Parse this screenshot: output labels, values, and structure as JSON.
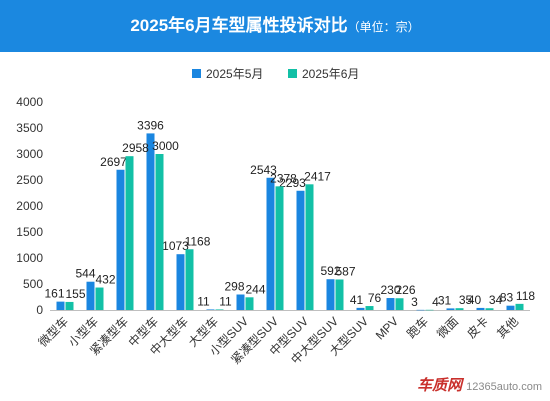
{
  "header": {
    "title": "2025年6月车型属性投诉对比",
    "subtitle": "（单位：宗）",
    "background": "#1b88e0"
  },
  "watermark": {
    "brand": "车质网",
    "url": "12365auto.com"
  },
  "chart_data": {
    "type": "bar",
    "categories": [
      "微型车",
      "小型车",
      "紧凑型车",
      "中型车",
      "中大型车",
      "大型车",
      "小型SUV",
      "紧凑型SUV",
      "中型SUV",
      "中大型SUV",
      "大型SUV",
      "MPV",
      "跑车",
      "微面",
      "皮卡",
      "其他"
    ],
    "series": [
      {
        "name": "2025年5月",
        "color": "#1a86e0",
        "values": [
          161,
          544,
          2697,
          3396,
          1073,
          11,
          298,
          2543,
          2293,
          592,
          41,
          230,
          3,
          31,
          40,
          83
        ]
      },
      {
        "name": "2025年6月",
        "color": "#12c0a6",
        "values": [
          155,
          432,
          2958,
          3000,
          1168,
          11,
          244,
          2378,
          2417,
          587,
          76,
          226,
          4,
          35,
          34,
          118
        ]
      }
    ],
    "yticks": [
      0,
      500,
      1000,
      1500,
      2000,
      2500,
      3000,
      3500,
      4000
    ],
    "ylim": [
      0,
      4000
    ],
    "grid": false,
    "legend": "top-center",
    "xlabel": "",
    "ylabel": ""
  }
}
